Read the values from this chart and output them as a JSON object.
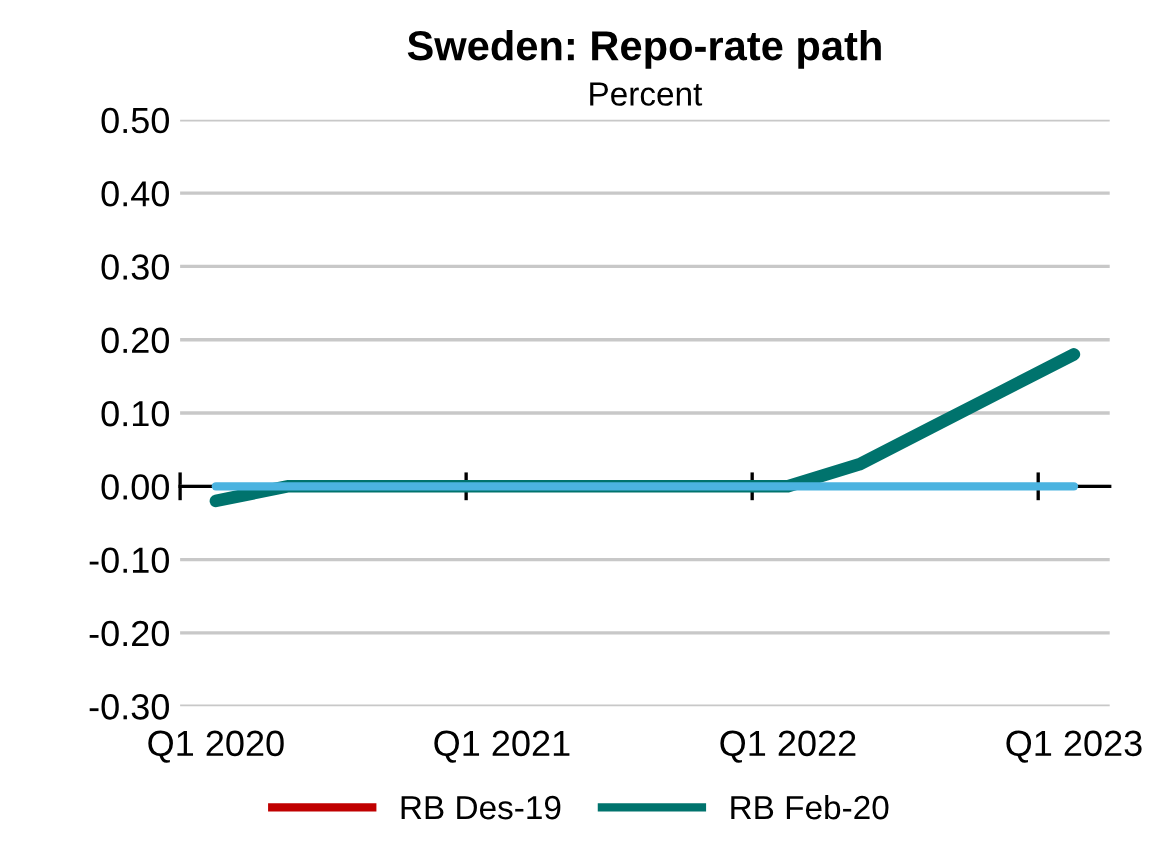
{
  "chart_data": {
    "type": "line",
    "title": "Sweden: Repo-rate path",
    "subtitle": "Percent",
    "categories": [
      "Q1 2020",
      null,
      null,
      null,
      "Q1 2021",
      null,
      null,
      null,
      "Q1 2022",
      null,
      null,
      null,
      "Q1 2023"
    ],
    "series": [
      {
        "name": "RB Des-19",
        "color": "#c00000",
        "values": [
          null,
          null,
          null,
          null,
          null,
          null,
          null,
          null,
          null,
          null,
          null,
          null,
          null
        ]
      },
      {
        "name": "RB Feb-20",
        "color": "#00736d",
        "values": [
          -0.02,
          0,
          0,
          0,
          0,
          0,
          0,
          0,
          0,
          0.03,
          0.08,
          0.13,
          0.18
        ]
      },
      {
        "color": "#4bb3e0",
        "values": [
          0,
          0,
          0,
          0,
          0,
          0,
          0,
          0,
          0,
          0,
          0,
          0,
          0
        ]
      }
    ],
    "ylim": [
      -0.3,
      0.5
    ],
    "yticks": [
      {
        "value": -0.3,
        "label": "-0.30"
      },
      {
        "value": -0.2,
        "label": "-0.20"
      },
      {
        "value": -0.1,
        "label": "-0.10"
      },
      {
        "value": 0,
        "label": "0.00"
      },
      {
        "value": 0.1,
        "label": "0.10"
      },
      {
        "value": 0.2,
        "label": "0.20"
      },
      {
        "value": 0.3,
        "label": "0.30"
      },
      {
        "value": 0.4,
        "label": "0.40"
      },
      {
        "value": 0.5,
        "label": "0.50"
      }
    ],
    "grid": "y",
    "legend": "bottom",
    "marker": "none",
    "line_style": "solid"
  }
}
